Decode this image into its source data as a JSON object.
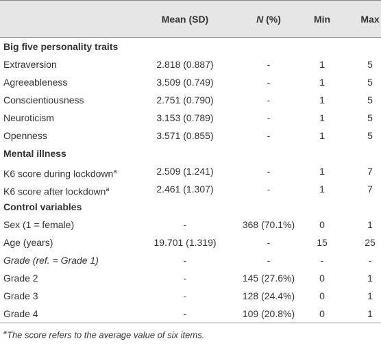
{
  "table": {
    "columns": [
      "Mean (SD)",
      "N (%)",
      "Min",
      "Max"
    ],
    "rows": [
      {
        "label": "Big five personality traits",
        "section": true
      },
      {
        "label": "Extraversion",
        "cells": [
          "2.818 (0.887)",
          "-",
          1,
          5
        ]
      },
      {
        "label": "Agreeableness",
        "cells": [
          "3.509 (0.749)",
          "-",
          1,
          5
        ]
      },
      {
        "label": "Conscientiousness",
        "cells": [
          "2.751 (0.790)",
          "-",
          1,
          5
        ]
      },
      {
        "label": "Neuroticism",
        "cells": [
          "3.153 (0.789)",
          "-",
          1,
          5
        ]
      },
      {
        "label": "Openness",
        "cells": [
          "3.571 (0.855)",
          "-",
          1,
          5
        ]
      },
      {
        "label": "Mental illness",
        "section": true
      },
      {
        "label": "K6 score during lockdown",
        "sup": "a",
        "cells": [
          "2.509 (1.241)",
          "-",
          1,
          7
        ]
      },
      {
        "label": "K6 score after lockdown",
        "sup": "a",
        "cells": [
          "2.461 (1.307)",
          "-",
          1,
          7
        ]
      },
      {
        "label": "Control variables",
        "section": true
      },
      {
        "label": "Sex (1 = female)",
        "cells": [
          "-",
          "368 (70.1%)",
          0,
          1
        ]
      },
      {
        "label": "Age (years)",
        "cells": [
          "19.701 (1.319)",
          "-",
          15,
          25
        ]
      },
      {
        "label": "Grade (ref. = Grade 1)",
        "italic": true,
        "cells": [
          "-",
          "-",
          "-",
          "-"
        ]
      },
      {
        "label": "Grade 2",
        "cells": [
          "-",
          "145 (27.6%)",
          0,
          1
        ]
      },
      {
        "label": "Grade 3",
        "cells": [
          "-",
          "128 (24.4%)",
          0,
          1
        ]
      },
      {
        "label": "Grade 4",
        "cells": [
          "-",
          "109 (20.8%)",
          0,
          1
        ]
      }
    ]
  },
  "footnote": {
    "marker": "a",
    "text": "The score refers to the average value of six items."
  }
}
